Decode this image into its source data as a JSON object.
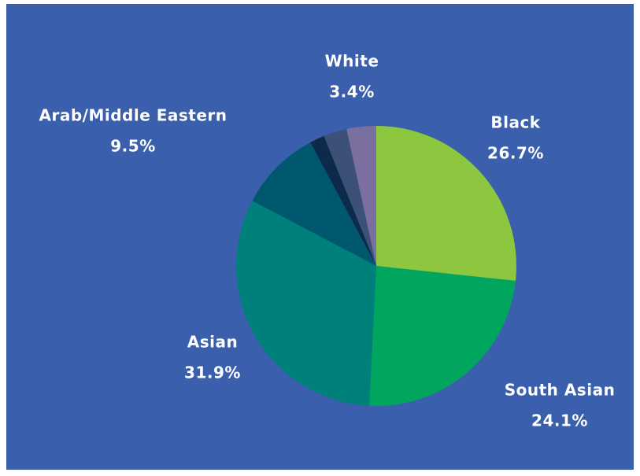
{
  "chart_data": {
    "type": "pie",
    "categories": [
      "Black",
      "South Asian",
      "Asian",
      "Arab/Middle Eastern",
      null,
      null,
      "White"
    ],
    "values": [
      26.7,
      24.1,
      31.9,
      9.5,
      1.7,
      2.7,
      3.4
    ],
    "value_labels": [
      "26.7%",
      "24.1%",
      "31.9%",
      "9.5%",
      null,
      null,
      "3.4%"
    ],
    "colors": [
      "#8dc63f",
      "#00a65e",
      "#00807a",
      "#00586f",
      "#0d2a4a",
      "#3d5078",
      "#7b6fa0"
    ],
    "background": "#3a5fad"
  }
}
